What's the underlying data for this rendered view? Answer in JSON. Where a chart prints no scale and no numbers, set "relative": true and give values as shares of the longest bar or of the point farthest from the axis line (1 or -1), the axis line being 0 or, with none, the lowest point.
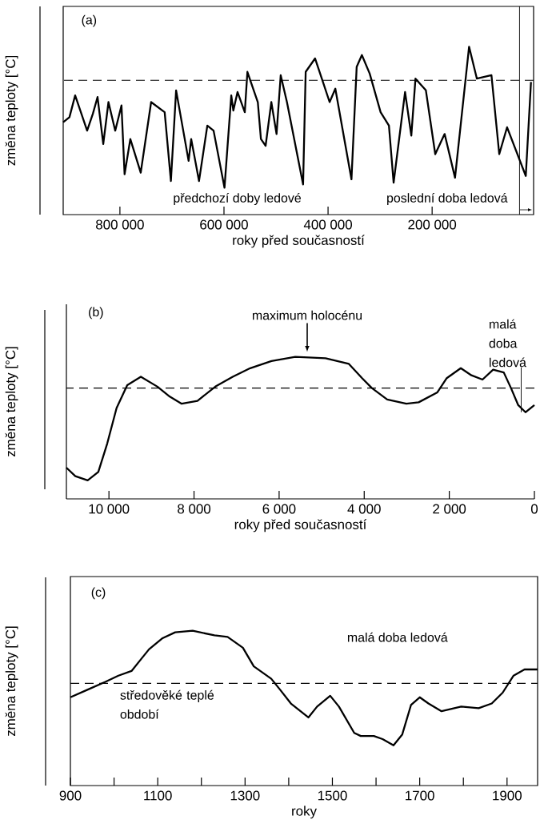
{
  "chart_data": [
    {
      "type": "line",
      "relative": true,
      "color": "#000000",
      "xlabel": "roky před současností",
      "ylabel": "změna teploty [°C]",
      "xlim": [
        909000,
        5000
      ],
      "xticks": [
        {
          "value": 800000,
          "label": "800 000"
        },
        {
          "value": 600000,
          "label": "600 000"
        },
        {
          "value": 400000,
          "label": "400 000"
        },
        {
          "value": 200000,
          "label": "200 000"
        }
      ],
      "x": [
        909000,
        897000,
        886000,
        863000,
        852000,
        843000,
        832000,
        822000,
        809000,
        797000,
        791000,
        780000,
        760000,
        740000,
        714000,
        702000,
        692000,
        668000,
        663000,
        648000,
        632000,
        620000,
        599000,
        586000,
        582000,
        574000,
        560000,
        555000,
        535000,
        529000,
        520000,
        509000,
        499000,
        491000,
        479000,
        448000,
        443000,
        425000,
        412000,
        397000,
        386000,
        355000,
        345000,
        335000,
        320000,
        299000,
        283000,
        274000,
        252000,
        240000,
        232000,
        212000,
        194000,
        176000,
        156000,
        129000,
        114000,
        86000,
        71000,
        56000,
        20000,
        10000
      ],
      "values": [
        0.55,
        0.58,
        0.71,
        0.5,
        0.6,
        0.7,
        0.42,
        0.67,
        0.5,
        0.65,
        0.24,
        0.45,
        0.25,
        0.67,
        0.61,
        0.2,
        0.74,
        0.32,
        0.45,
        0.2,
        0.53,
        0.5,
        0.16,
        0.71,
        0.62,
        0.73,
        0.61,
        0.85,
        0.67,
        0.45,
        0.41,
        0.67,
        0.48,
        0.83,
        0.67,
        0.18,
        0.85,
        0.93,
        0.81,
        0.67,
        0.75,
        0.21,
        0.88,
        0.95,
        0.84,
        0.61,
        0.53,
        0.19,
        0.73,
        0.47,
        0.81,
        0.74,
        0.36,
        0.48,
        0.22,
        1.0,
        0.81,
        0.83,
        0.36,
        0.52,
        0.23,
        0.79
      ],
      "ref_lines": [
        {
          "axis": "y",
          "value": 0.8,
          "line_style": "dashed"
        },
        {
          "axis": "x",
          "value": 32000,
          "line_style": "solid"
        }
      ],
      "annotations": [
        "(a)",
        "předchozí doby ledové",
        "poslední doba ledová"
      ]
    },
    {
      "type": "line",
      "relative": true,
      "color": "#000000",
      "xlabel": "roky před současností",
      "ylabel": "změna teploty [°C]",
      "xlim": [
        11000,
        0
      ],
      "xticks": [
        {
          "value": 10000,
          "label": "10 000"
        },
        {
          "value": 8000,
          "label": "8 000"
        },
        {
          "value": 6000,
          "label": "6 000"
        },
        {
          "value": 4000,
          "label": "4 000"
        },
        {
          "value": 2000,
          "label": "2 000"
        },
        0
      ],
      "x": [
        11000,
        10790,
        10500,
        10250,
        10040,
        9820,
        9570,
        9250,
        8860,
        8570,
        8290,
        7920,
        7500,
        7090,
        6680,
        6180,
        5620,
        4910,
        4360,
        4050,
        3820,
        3460,
        3010,
        2720,
        2280,
        2060,
        1730,
        1480,
        1220,
        970,
        720,
        550,
        380,
        210,
        0
      ],
      "values": [
        0.22,
        0.16,
        0.13,
        0.19,
        0.39,
        0.64,
        0.8,
        0.86,
        0.79,
        0.72,
        0.67,
        0.69,
        0.79,
        0.86,
        0.92,
        0.97,
        1.0,
        0.99,
        0.95,
        0.85,
        0.78,
        0.7,
        0.67,
        0.68,
        0.75,
        0.85,
        0.92,
        0.87,
        0.84,
        0.91,
        0.89,
        0.78,
        0.66,
        0.61,
        0.66
      ],
      "ref_lines": [
        {
          "axis": "y",
          "value": 0.78,
          "line_style": "dashed"
        }
      ],
      "annotations": [
        "(b)",
        {
          "text": "maximum holocénu",
          "x": 5340,
          "y": 1.0
        },
        {
          "text": "malá doba ledová",
          "x": 310,
          "y": 0.61
        }
      ]
    },
    {
      "type": "line",
      "relative": true,
      "color": "#000000",
      "xlabel": "roky",
      "ylabel": "změna teploty [°C]",
      "xlim": [
        900,
        1970
      ],
      "xticks": [
        900,
        {
          "value": 1000,
          "label": null
        },
        1100,
        {
          "value": 1200,
          "label": null
        },
        1300,
        {
          "value": 1400,
          "label": null
        },
        1500,
        {
          "value": 1600,
          "label": null
        },
        1700,
        {
          "value": 1800,
          "label": null
        },
        1900
      ],
      "x": [
        900,
        940,
        980,
        1010,
        1040,
        1060,
        1080,
        1110,
        1140,
        1180,
        1230,
        1260,
        1295,
        1320,
        1360,
        1380,
        1405,
        1445,
        1465,
        1495,
        1515,
        1550,
        1565,
        1595,
        1615,
        1640,
        1660,
        1680,
        1700,
        1720,
        1750,
        1795,
        1835,
        1865,
        1890,
        1915,
        1940,
        1970
      ],
      "values": [
        0.57,
        0.62,
        0.67,
        0.71,
        0.74,
        0.81,
        0.88,
        0.95,
        0.99,
        1.0,
        0.97,
        0.96,
        0.89,
        0.77,
        0.69,
        0.62,
        0.53,
        0.44,
        0.51,
        0.58,
        0.51,
        0.34,
        0.32,
        0.32,
        0.3,
        0.26,
        0.33,
        0.52,
        0.57,
        0.53,
        0.48,
        0.51,
        0.5,
        0.53,
        0.6,
        0.71,
        0.75,
        0.75
      ],
      "ref_lines": [
        {
          "axis": "y",
          "value": 0.66,
          "line_style": "dashed"
        }
      ],
      "annotations": [
        "(c)",
        "malá doba ledová",
        "středověké teplé období"
      ]
    }
  ]
}
